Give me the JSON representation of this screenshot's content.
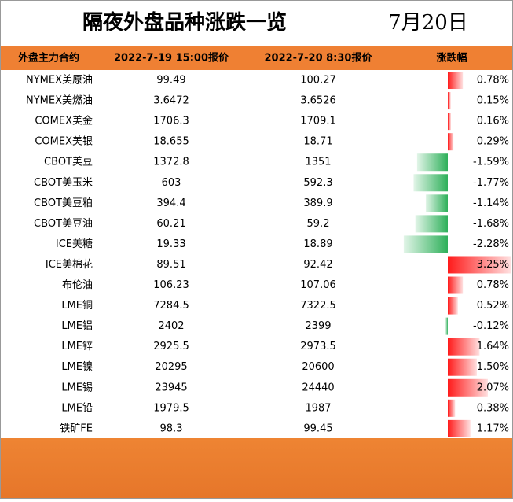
{
  "header": {
    "title": "隔夜外盘品种涨跌一览",
    "date": "7月20日"
  },
  "table": {
    "columns": [
      "外盘主力合约",
      "2022-7-19 15:00报价",
      "2022-7-20 8:30报价",
      "涨跌幅"
    ],
    "rows": [
      {
        "name": "NYMEX美原油",
        "price1": "99.49",
        "price2": "100.27",
        "change": 0.78,
        "change_label": "0.78%"
      },
      {
        "name": "NYMEX美燃油",
        "price1": "3.6472",
        "price2": "3.6526",
        "change": 0.15,
        "change_label": "0.15%"
      },
      {
        "name": "COMEX美金",
        "price1": "1706.3",
        "price2": "1709.1",
        "change": 0.16,
        "change_label": "0.16%"
      },
      {
        "name": "COMEX美银",
        "price1": "18.655",
        "price2": "18.71",
        "change": 0.29,
        "change_label": "0.29%"
      },
      {
        "name": "CBOT美豆",
        "price1": "1372.8",
        "price2": "1351",
        "change": -1.59,
        "change_label": "-1.59%"
      },
      {
        "name": "CBOT美玉米",
        "price1": "603",
        "price2": "592.3",
        "change": -1.77,
        "change_label": "-1.77%"
      },
      {
        "name": "CBOT美豆粕",
        "price1": "394.4",
        "price2": "389.9",
        "change": -1.14,
        "change_label": "-1.14%"
      },
      {
        "name": "CBOT美豆油",
        "price1": "60.21",
        "price2": "59.2",
        "change": -1.68,
        "change_label": "-1.68%"
      },
      {
        "name": "ICE美糖",
        "price1": "19.33",
        "price2": "18.89",
        "change": -2.28,
        "change_label": "-2.28%"
      },
      {
        "name": "ICE美棉花",
        "price1": "89.51",
        "price2": "92.42",
        "change": 3.25,
        "change_label": "3.25%"
      },
      {
        "name": "布伦油",
        "price1": "106.23",
        "price2": "107.06",
        "change": 0.78,
        "change_label": "0.78%"
      },
      {
        "name": "LME铜",
        "price1": "7284.5",
        "price2": "7322.5",
        "change": 0.52,
        "change_label": "0.52%"
      },
      {
        "name": "LME铝",
        "price1": "2402",
        "price2": "2399",
        "change": -0.12,
        "change_label": "-0.12%"
      },
      {
        "name": "LME锌",
        "price1": "2925.5",
        "price2": "2973.5",
        "change": 1.64,
        "change_label": "1.64%"
      },
      {
        "name": "LME镍",
        "price1": "20295",
        "price2": "20600",
        "change": 1.5,
        "change_label": "1.50%"
      },
      {
        "name": "LME锡",
        "price1": "23945",
        "price2": "24440",
        "change": 2.07,
        "change_label": "2.07%"
      },
      {
        "name": "LME铅",
        "price1": "1979.5",
        "price2": "1987",
        "change": 0.38,
        "change_label": "0.38%"
      },
      {
        "name": "铁矿FE",
        "price1": "98.3",
        "price2": "99.45",
        "change": 1.17,
        "change_label": "1.17%"
      }
    ]
  }
}
